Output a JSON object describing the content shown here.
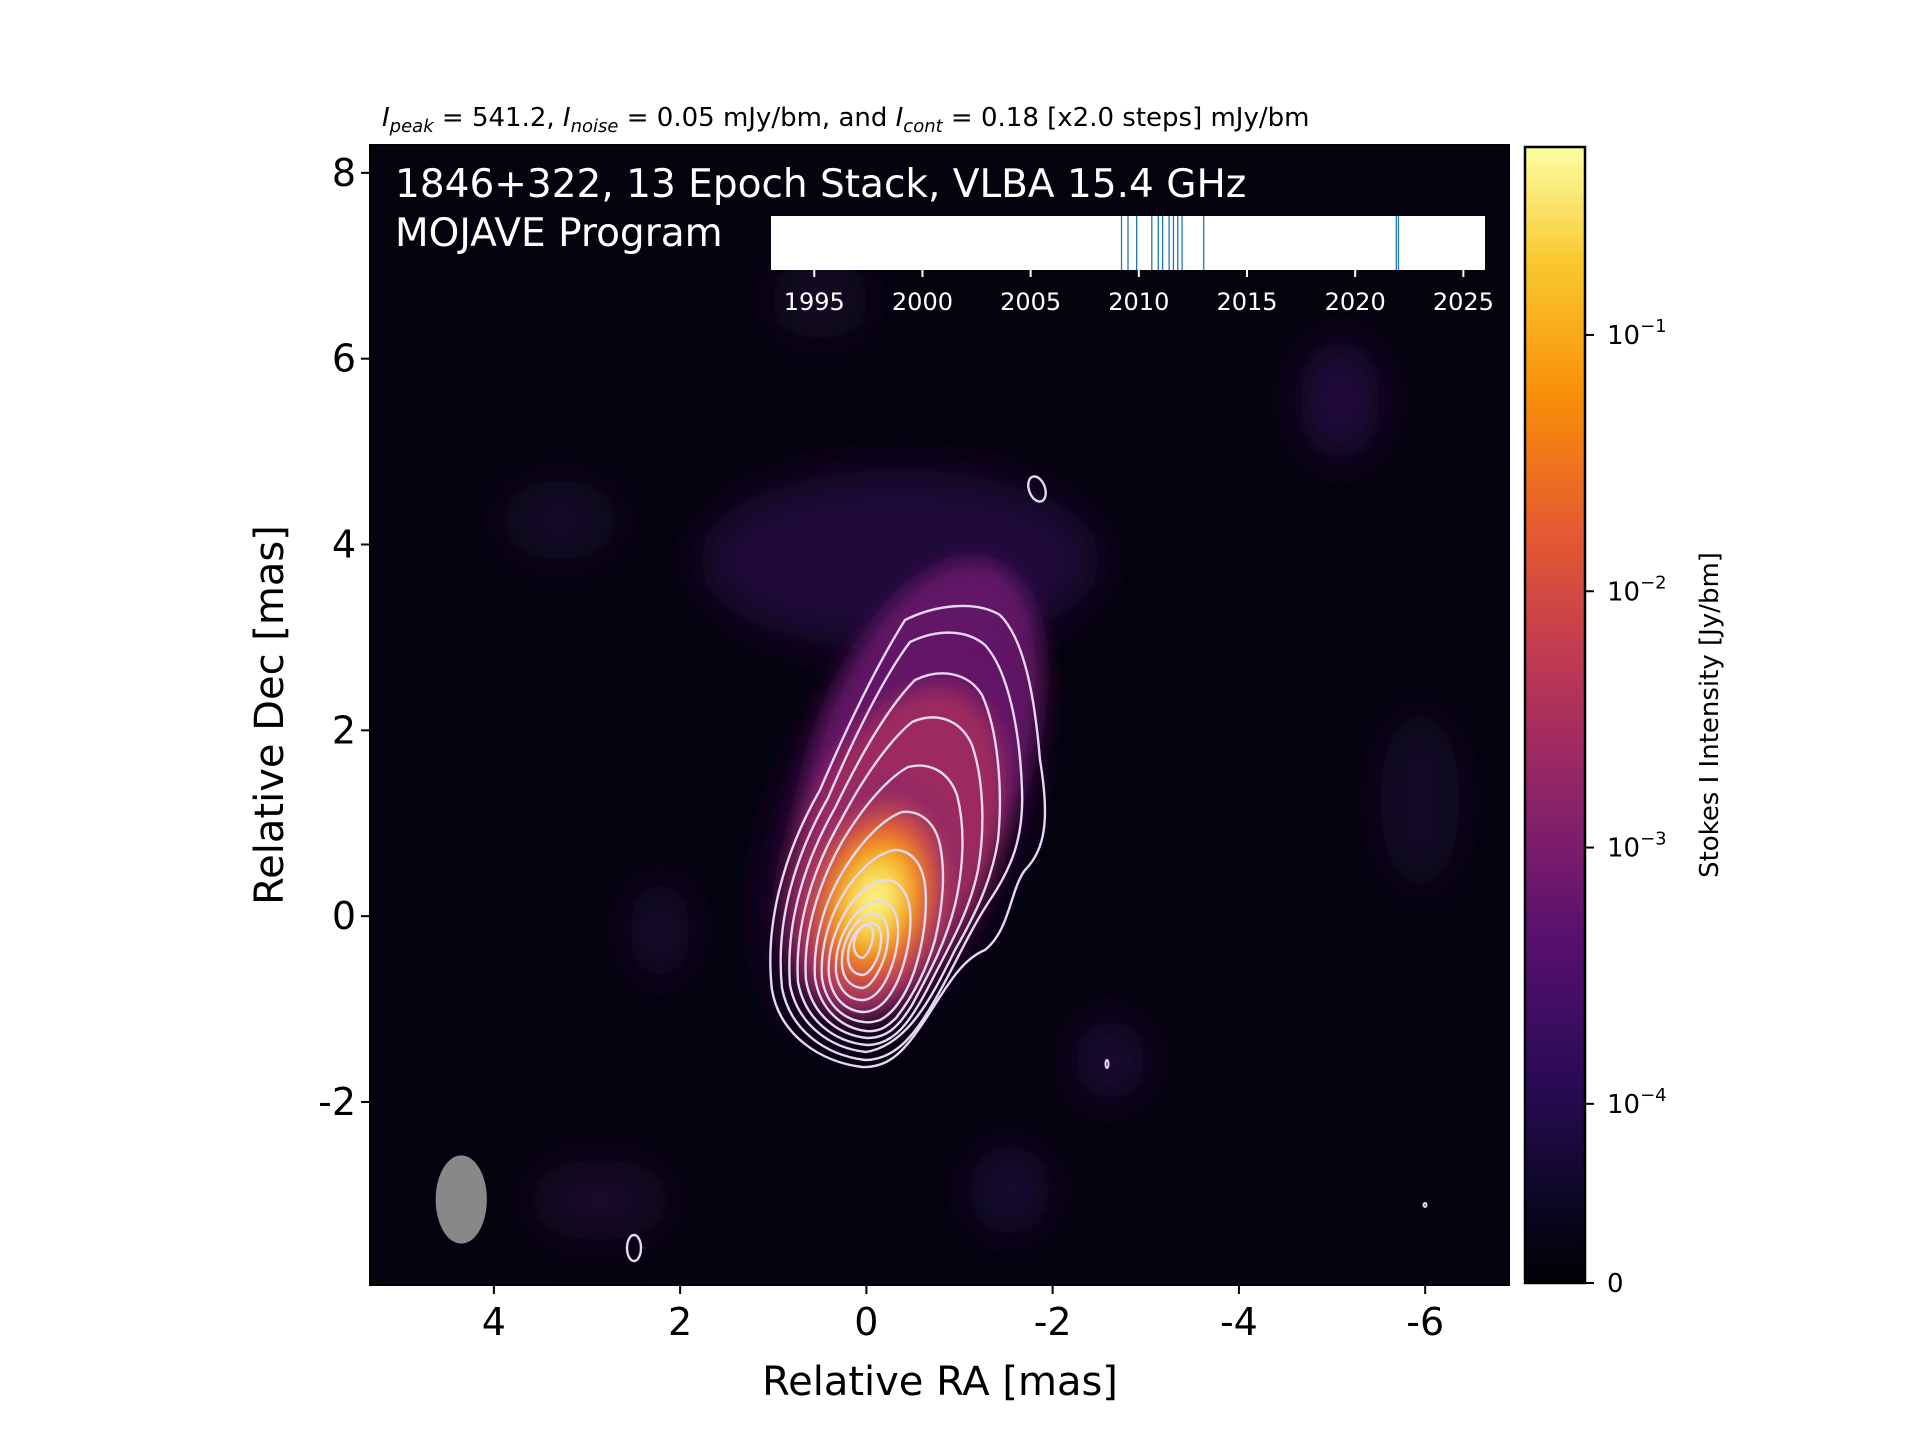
{
  "chart_data": {
    "type": "heatmap",
    "header": {
      "prefix_peak": "I",
      "sub_peak": "peak",
      "text_peak": " = 541.2, ",
      "prefix_noise": "I",
      "sub_noise": "noise",
      "text_noise": " = 0.05 mJy/bm, and ",
      "prefix_cont": "I",
      "sub_cont": "cont",
      "text_cont": " = 0.18 [x2.0 steps] mJy/bm"
    },
    "title_line1": "1846+322, 13 Epoch Stack, VLBA 15.4 GHz",
    "title_line2": "MOJAVE Program",
    "xlabel": "Relative RA [mas]",
    "ylabel": "Relative Dec [mas]",
    "xlim": [
      5.33,
      -6.9
    ],
    "ylim": [
      -3.97,
      8.3
    ],
    "xticks": [
      4,
      2,
      0,
      -2,
      -4,
      -6
    ],
    "xtick_labels": [
      "4",
      "2",
      "0",
      "-2",
      "-4",
      "-6"
    ],
    "yticks": [
      8,
      6,
      4,
      2,
      0,
      -2
    ],
    "ytick_labels": [
      "8",
      "6",
      "4",
      "2",
      "0",
      "-2"
    ],
    "colormap": "inferno",
    "colorbar": {
      "label": "Stokes I Intensity [Jy/bm]",
      "scale": "log",
      "ticks": [
        0,
        0.0001,
        0.001,
        0.01,
        0.1
      ],
      "tick_labels": [
        {
          "base": "0",
          "exp": ""
        },
        {
          "base": "10",
          "exp": "−4"
        },
        {
          "base": "10",
          "exp": "−3"
        },
        {
          "base": "10",
          "exp": "−2"
        },
        {
          "base": "10",
          "exp": "−1"
        }
      ]
    },
    "source": {
      "core_position": [
        0,
        0
      ],
      "peak_jy_per_beam": 0.5412,
      "jet_direction": "north-west",
      "contour_color": "#e6d8f0"
    },
    "beam": {
      "center": [
        4.35,
        -3.05
      ],
      "major_mas": 0.95,
      "minor_mas": 0.55,
      "color": "#888888"
    },
    "epoch_timeline": {
      "xlim": [
        1993,
        2026
      ],
      "ticks": [
        1995,
        2000,
        2005,
        2010,
        2015,
        2020,
        2025
      ],
      "tick_labels": [
        "1995",
        "2000",
        "2005",
        "2010",
        "2015",
        "2020",
        "2025"
      ],
      "epochs": [
        2009.2,
        2009.5,
        2009.9,
        2010.6,
        2010.9,
        2011.1,
        2011.4,
        2011.6,
        2011.8,
        2012.0,
        2013.0,
        2021.9,
        2022.0
      ],
      "line_color": "#1f77b4"
    }
  }
}
